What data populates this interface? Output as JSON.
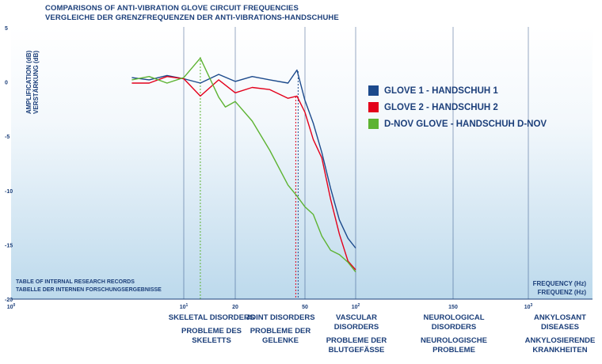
{
  "title_en": "COMPARISONS OF ANTI-VIBRATION GLOVE CIRCUIT FREQUENCIES",
  "title_de": "VERGLEICHE DER GRENZFREQUENZEN DER ANTI-VIBRATIONS-HANDSCHUHE",
  "ylabel_en": "AMPLIFICATION (dB)",
  "ylabel_de": "VERSTÄRKUNG (dB)",
  "xlabel_en": "FREQUENCY (Hz)",
  "xlabel_de": "FREQUENZ (Hz)",
  "note_en": "TABLE OF INTERNAL RESEARCH RECORDS",
  "note_de": "TABELLE DER INTERNEN FORSCHUNGSERGEBNISSE",
  "categories": [
    {
      "en": "SKELETAL DISORDERS",
      "de": "PROBLEME DES SKELETTS"
    },
    {
      "en": "JOINT DISORDERS",
      "de": "PROBLEME DER GELENKE"
    },
    {
      "en": "VASCULAR DISORDERS",
      "de": "PROBLEME DER BLUTGEFÄSSE"
    },
    {
      "en": "NEUROLOGICAL DISORDERS",
      "de": "NEUROLOGISCHE PROBLEME"
    },
    {
      "en": "ANKYLOSANT DISEASES",
      "de": "ANKYLOSIERENDE KRANKHEITEN"
    }
  ],
  "colors": {
    "glove1": "#1c4a8c",
    "glove2": "#e3001b",
    "dnov": "#5db332",
    "axis": "#1c3f7a"
  },
  "chart_data": {
    "type": "line",
    "title": "COMPARISONS OF ANTI-VIBRATION GLOVE CIRCUIT FREQUENCIES",
    "subtitle": "VERGLEICHE DER GRENZFREQUENZEN DER ANTI-VIBRATIONS-HANDSCHUHE",
    "xlabel": "FREQUENCY (Hz) / FREQUENZ (Hz)",
    "ylabel": "AMPLIFICATION (dB) / VERSTÄRKUNG (dB)",
    "x_scale": "log",
    "xlim": [
      1,
      1000
    ],
    "ylim": [
      -20,
      5
    ],
    "x_ticks": [
      {
        "value": 1,
        "base": "10",
        "exp": "0"
      },
      {
        "value": 10,
        "base": "10",
        "exp": "1"
      },
      {
        "value": 20,
        "base": "20",
        "exp": ""
      },
      {
        "value": 50,
        "base": "50",
        "exp": ""
      },
      {
        "value": 100,
        "base": "10",
        "exp": "2"
      },
      {
        "value": 150,
        "base": "150",
        "exp": ""
      },
      {
        "value": 1000,
        "base": "10",
        "exp": "3"
      }
    ],
    "y_ticks": [
      5,
      0,
      -5,
      -10,
      -15,
      -20
    ],
    "grid": false,
    "legend_position": "right",
    "markers": [
      12.5,
      45
    ],
    "series": [
      {
        "name": "GLOVE 1 - HANDSCHUH 1",
        "color": "#1c4a8c",
        "x": [
          5,
          6.3,
          8,
          10,
          12.5,
          16,
          20,
          25,
          31.5,
          40,
          45,
          50,
          56,
          63,
          71,
          80,
          90,
          100
        ],
        "y": [
          0.4,
          0.2,
          0.6,
          0.3,
          -0.1,
          0.7,
          0.05,
          0.5,
          0.2,
          -0.1,
          1.1,
          -1.7,
          -3.8,
          -6.5,
          -9.8,
          -12.7,
          -14.4,
          -15.3
        ]
      },
      {
        "name": "GLOVE 2 - HANDSCHUH 2",
        "color": "#e3001b",
        "x": [
          5,
          6.3,
          8,
          10,
          12.5,
          16,
          20,
          25,
          31.5,
          40,
          45,
          50,
          56,
          63,
          71,
          80,
          90,
          100
        ],
        "y": [
          -0.1,
          -0.1,
          0.5,
          0.3,
          -1.3,
          0.2,
          -1.0,
          -0.5,
          -0.7,
          -1.5,
          -1.3,
          -2.8,
          -5.3,
          -7.0,
          -10.8,
          -14.0,
          -16.5,
          -17.3
        ]
      },
      {
        "name": "D-NOV GLOVE - HANDSCHUH D-NOV",
        "color": "#5db332",
        "x": [
          5,
          6.3,
          8,
          10,
          12.5,
          16,
          17.5,
          20,
          25,
          31.5,
          40,
          45,
          50,
          56,
          63,
          71,
          80,
          90,
          100
        ],
        "y": [
          0.2,
          0.5,
          -0.1,
          0.4,
          2.2,
          -1.4,
          -2.3,
          -1.8,
          -3.6,
          -6.3,
          -9.5,
          -10.5,
          -11.5,
          -12.2,
          -14.2,
          -15.5,
          -15.9,
          -16.6,
          -17.5
        ]
      }
    ]
  }
}
